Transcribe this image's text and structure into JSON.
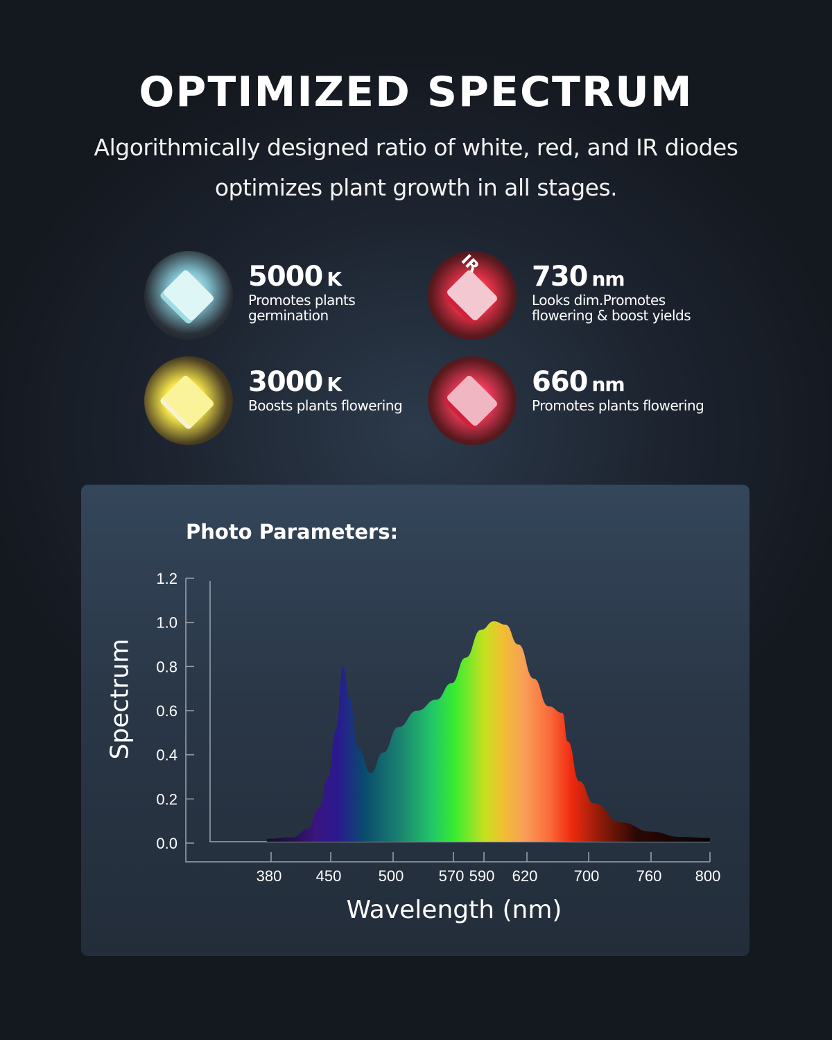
{
  "header": {
    "title": "OPTIMIZED SPECTRUM",
    "subtitle": "Algorithmically designed ratio of white, red, and IR diodes optimizes plant growth in all stages."
  },
  "features": [
    {
      "value": "5000",
      "unit": "K",
      "desc": "Promotes plants germination",
      "icon": "white-led-chip-icon",
      "color": "#cfeff0"
    },
    {
      "value": "730",
      "unit": "nm",
      "desc": "Looks dim.Promotes flowering & boost yields",
      "icon": "ir-led-chip-icon",
      "icon_label": "IR",
      "color": "#e8324a"
    },
    {
      "value": "3000",
      "unit": "K",
      "desc": "Boosts plants flowering",
      "icon": "warm-white-led-chip-icon",
      "color": "#f6f07a"
    },
    {
      "value": "660",
      "unit": "nm",
      "desc": "Promotes plants flowering",
      "icon": "red-led-chip-icon",
      "color": "#e83a58"
    }
  ],
  "chart_title": "Photo Parameters:",
  "chart_data": {
    "type": "area",
    "xlabel": "Wavelength (nm)",
    "ylabel": "Spectrum",
    "ylim": [
      0,
      1.2
    ],
    "yticks": [
      "0.0",
      "0.2",
      "0.4",
      "0.6",
      "0.8",
      "1.0",
      "1.2"
    ],
    "xticks": [
      "380",
      "450",
      "500",
      "570",
      "590",
      "620",
      "700",
      "760",
      "800"
    ],
    "grid": false,
    "fill": "visible-spectrum-gradient",
    "x": [
      375,
      405,
      423,
      436,
      447,
      454,
      460,
      465,
      472,
      482,
      492,
      506,
      528,
      550,
      568,
      578,
      588,
      597,
      605,
      614,
      629,
      648,
      666,
      673,
      688,
      705,
      731,
      760,
      780,
      800
    ],
    "y": [
      0.02,
      0.026,
      0.063,
      0.157,
      0.3,
      0.51,
      0.8,
      0.66,
      0.43,
      0.317,
      0.41,
      0.525,
      0.6,
      0.65,
      0.725,
      0.84,
      0.966,
      1.005,
      0.99,
      0.9,
      0.745,
      0.62,
      0.59,
      0.46,
      0.28,
      0.18,
      0.094,
      0.052,
      0.028,
      0.023
    ]
  }
}
